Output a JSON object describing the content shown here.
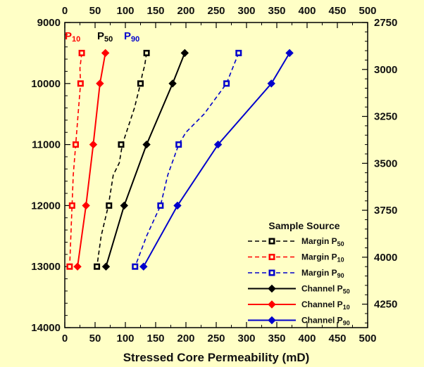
{
  "chart_data": {
    "type": "line",
    "xlabel": "Stressed Core Permeability (mD)",
    "x_ticks": [
      "0",
      "50",
      "100",
      "150",
      "200",
      "250",
      "300",
      "350",
      "400",
      "450",
      "500"
    ],
    "xlim": [
      0,
      500
    ],
    "ylim": [
      9000,
      14000
    ],
    "y_left_ticks": [
      "9000",
      "10000",
      "11000",
      "12000",
      "13000",
      "14000"
    ],
    "ylim_right": [
      2750,
      4375
    ],
    "y_right_ticks": [
      "2750",
      "3000",
      "3250",
      "3500",
      "3750",
      "4000",
      "4250"
    ],
    "corner_labels": [
      {
        "base": "P",
        "sub": "10",
        "color": "#ff0000"
      },
      {
        "base": "P",
        "sub": "50",
        "color": "#000000"
      },
      {
        "base": "P",
        "sub": "90",
        "color": "#0000cc"
      }
    ],
    "legend": {
      "title": "Sample Source",
      "position": "bottom-right"
    },
    "series": [
      {
        "name": "Margin",
        "sub": "50",
        "color": "#000000",
        "dash": true,
        "marker": "square",
        "x": [
          135,
          125,
          93,
          73,
          53
        ],
        "y": [
          9500,
          10000,
          11000,
          12000,
          13000
        ],
        "path_x": [
          135,
          132,
          128,
          125,
          115,
          105,
          95,
          90,
          80,
          72,
          60,
          53
        ],
        "path_y": [
          9500,
          9700,
          9850,
          10000,
          10400,
          10700,
          11000,
          11300,
          11500,
          12000,
          12500,
          13000
        ]
      },
      {
        "name": "Margin",
        "sub": "10",
        "color": "#ff0000",
        "dash": true,
        "marker": "square",
        "x": [
          28,
          26,
          18,
          12,
          8
        ],
        "y": [
          9500,
          10000,
          11000,
          12000,
          13000
        ],
        "path_x": [
          28,
          25,
          26,
          22,
          18,
          14,
          12,
          10,
          8
        ],
        "path_y": [
          9500,
          9750,
          10000,
          10500,
          11000,
          11500,
          12000,
          12500,
          13000
        ]
      },
      {
        "name": "Margin",
        "sub": "90",
        "color": "#0000cc",
        "dash": true,
        "marker": "square",
        "x": [
          287,
          267,
          188,
          158,
          116
        ],
        "y": [
          9500,
          10000,
          11000,
          12000,
          13000
        ],
        "path_x": [
          287,
          267,
          230,
          200,
          188,
          170,
          158,
          135,
          116
        ],
        "path_y": [
          9500,
          10000,
          10500,
          10800,
          11000,
          11500,
          12000,
          12500,
          13000
        ]
      },
      {
        "name": "Channel",
        "sub": "50",
        "color": "#000000",
        "dash": false,
        "marker": "diamond",
        "x": [
          198,
          178,
          135,
          98,
          68
        ],
        "y": [
          9500,
          10000,
          11000,
          12000,
          13000
        ],
        "path_x": [
          198,
          178,
          135,
          98,
          68
        ],
        "path_y": [
          9500,
          10000,
          11000,
          12000,
          13000
        ]
      },
      {
        "name": "Channel",
        "sub": "10",
        "color": "#ff0000",
        "dash": false,
        "marker": "diamond",
        "x": [
          67,
          58,
          47,
          35,
          21
        ],
        "y": [
          9500,
          10000,
          11000,
          12000,
          13000
        ],
        "path_x": [
          67,
          58,
          47,
          35,
          21
        ],
        "path_y": [
          9500,
          10000,
          11000,
          12000,
          13000
        ]
      },
      {
        "name": "Channel",
        "sub": "90",
        "color": "#0000cc",
        "dash": false,
        "marker": "diamond",
        "x": [
          371,
          341,
          253,
          186,
          130
        ],
        "y": [
          9500,
          10000,
          11000,
          12000,
          13000
        ],
        "path_x": [
          371,
          341,
          253,
          186,
          130
        ],
        "path_y": [
          9500,
          10000,
          11000,
          12000,
          13000
        ]
      }
    ]
  }
}
